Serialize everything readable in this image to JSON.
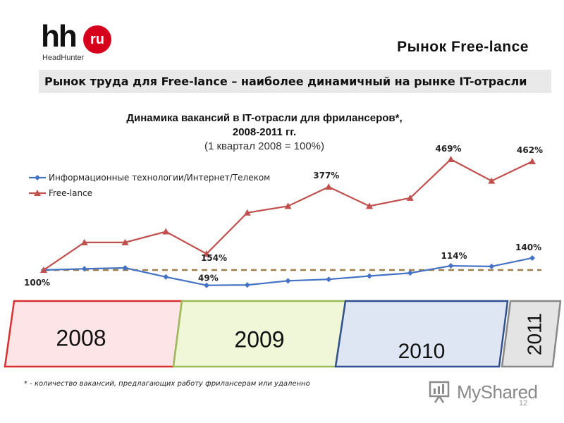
{
  "logo": {
    "mark": "hh",
    "badge": "ru",
    "subtext": "HeadHunter"
  },
  "page_title": "Рынок Free-lance",
  "subtitle": "Рынок труда для Free-lance – наиболее динамичный на рынке IT-отрасли",
  "chart_data": {
    "type": "line",
    "title_lines": [
      "Динамика вакансий в IT-отрасли для фрилансеров*,",
      "2008-2011 гг."
    ],
    "subtitle": "(1 квартал 2008 = 100%)",
    "xlabel": "",
    "ylabel": "",
    "x_count": 13,
    "grid": false,
    "legend_position": "top-left",
    "series": [
      {
        "name": "Информационные технологии/Интернет/Телеком",
        "color": "#4472c4",
        "marker": "diamond",
        "values": [
          100,
          104,
          107,
          77,
          49,
          50,
          64,
          69,
          80,
          90,
          114,
          112,
          140
        ]
      },
      {
        "name": "Free-lance",
        "color": "#c0504d",
        "marker": "triangle",
        "values": [
          100,
          192,
          192,
          228,
          154,
          291,
          313,
          377,
          313,
          340,
          469,
          397,
          462
        ]
      }
    ],
    "baseline": {
      "value": 100,
      "color": "#9c7f4a"
    },
    "data_labels": [
      {
        "series": 0,
        "index": 0,
        "text": "100%"
      },
      {
        "series": 0,
        "index": 4,
        "text": "49%"
      },
      {
        "series": 1,
        "index": 4,
        "text": "154%"
      },
      {
        "series": 1,
        "index": 7,
        "text": "377%"
      },
      {
        "series": 0,
        "index": 10,
        "text": "114%"
      },
      {
        "series": 1,
        "index": 10,
        "text": "469%"
      },
      {
        "series": 0,
        "index": 12,
        "text": "140%"
      },
      {
        "series": 1,
        "index": 12,
        "text": "462%"
      }
    ]
  },
  "years": [
    {
      "label": "2008",
      "fill": "#fde4e6",
      "stroke": "#d83030"
    },
    {
      "label": "2009",
      "fill": "#f0f6d8",
      "stroke": "#9bbb59"
    },
    {
      "label": "2010",
      "fill": "#dde6f2",
      "stroke": "#2f4f8f"
    },
    {
      "label": "2011",
      "fill": "#e4e4e4",
      "stroke": "#888888"
    }
  ],
  "footnote": "* - количество вакансий, предлагающих работу фрилансерам или удаленно",
  "watermark": {
    "text": "MyShared",
    "icon": "presentation-board-icon"
  },
  "page_number": "12"
}
